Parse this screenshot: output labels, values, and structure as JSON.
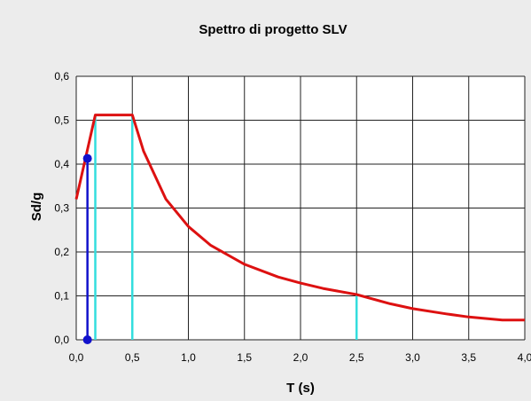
{
  "chart_data": {
    "type": "line",
    "title": "Spettro di progetto SLV",
    "xlabel": "T (s)",
    "ylabel": "Sd/g",
    "xlim": [
      0,
      4
    ],
    "ylim": [
      0,
      0.6
    ],
    "grid": true,
    "x_ticks": [
      "0,0",
      "0,5",
      "1,0",
      "1,5",
      "2,0",
      "2,5",
      "3,0",
      "3,5",
      "4,0"
    ],
    "x_tick_values": [
      0,
      0.5,
      1.0,
      1.5,
      2.0,
      2.5,
      3.0,
      3.5,
      4.0
    ],
    "y_ticks": [
      "0,0",
      "0,1",
      "0,2",
      "0,3",
      "0,4",
      "0,5",
      "0,6"
    ],
    "y_tick_values": [
      0,
      0.1,
      0.2,
      0.3,
      0.4,
      0.5,
      0.6
    ],
    "series": [
      {
        "color": "#dd1111",
        "x": [
          0.0,
          0.17,
          0.5,
          0.6,
          0.8,
          1.0,
          1.2,
          1.5,
          1.8,
          2.0,
          2.2,
          2.5,
          2.8,
          3.0,
          3.3,
          3.5,
          3.8,
          4.0
        ],
        "y": [
          0.32,
          0.512,
          0.512,
          0.43,
          0.32,
          0.258,
          0.215,
          0.172,
          0.143,
          0.129,
          0.117,
          0.103,
          0.082,
          0.071,
          0.059,
          0.052,
          0.045,
          0.045
        ]
      }
    ],
    "markers": [
      {
        "x": 0.17,
        "y": 0.512,
        "color": "#33dddd"
      },
      {
        "x": 0.5,
        "y": 0.512,
        "color": "#33dddd"
      },
      {
        "x": 2.5,
        "y": 0.103,
        "color": "#33dddd"
      }
    ],
    "design_point": {
      "x": 0.1,
      "y": 0.413,
      "color": "#1111cc"
    },
    "colors": {
      "background": "#ececec",
      "plot_area": "#ffffff",
      "grid": "#222222"
    }
  }
}
